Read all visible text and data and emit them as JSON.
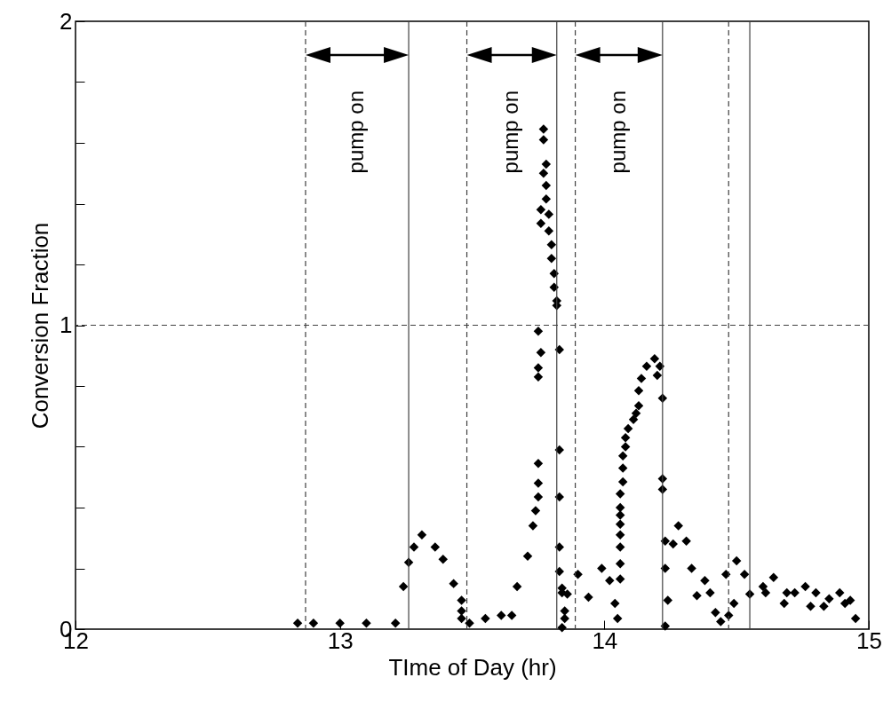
{
  "chart_data": {
    "type": "scatter",
    "xlabel": "TIme of Day (hr)",
    "ylabel": "Conversion Fraction",
    "xlim": [
      12,
      15
    ],
    "xticks": [
      12,
      13,
      14,
      15
    ],
    "ylim": [
      0,
      2
    ],
    "yticks": [
      0,
      {
        "value": 0.2,
        "label": null
      },
      {
        "value": 0.4,
        "label": null
      },
      {
        "value": 0.6,
        "label": null
      },
      {
        "value": 0.8,
        "label": null
      },
      1,
      {
        "value": 1.2,
        "label": null
      },
      {
        "value": 1.4,
        "label": null
      },
      {
        "value": 1.6,
        "label": null
      },
      {
        "value": 1.8,
        "label": null
      },
      2
    ],
    "grid": false,
    "marker": "diamond",
    "series": [
      {
        "color": "#000000",
        "x": [
          12.84,
          12.9,
          13.0,
          13.1,
          13.21,
          13.24,
          13.26,
          13.28,
          13.31,
          13.36,
          13.39,
          13.43,
          13.46,
          13.46,
          13.46,
          13.49,
          13.55,
          13.61,
          13.65,
          13.67,
          13.71,
          13.73,
          13.74,
          13.75,
          13.75,
          13.75,
          13.75,
          13.75,
          13.76,
          13.75,
          13.77,
          13.77,
          13.78,
          13.77,
          13.78,
          13.78,
          13.76,
          13.76,
          13.79,
          13.79,
          13.8,
          13.8,
          13.81,
          13.81,
          13.82,
          13.82,
          13.83,
          13.83,
          13.83,
          13.83,
          13.83,
          13.84,
          13.85,
          13.84,
          13.84,
          13.85,
          13.86,
          13.9,
          13.94,
          13.99,
          14.02,
          14.04,
          14.05,
          14.06,
          14.06,
          14.06,
          14.06,
          14.06,
          14.06,
          14.06,
          14.06,
          14.07,
          14.07,
          14.07,
          14.08,
          14.08,
          14.09,
          14.11,
          14.12,
          14.13,
          14.13,
          14.14,
          14.16,
          14.19,
          14.2,
          14.21,
          14.22,
          14.22,
          14.22,
          14.23,
          14.23,
          14.24,
          14.23,
          14.26,
          14.28,
          14.31,
          14.33,
          14.35,
          14.38,
          14.4,
          14.42,
          14.44,
          14.47,
          14.49,
          14.46,
          14.5,
          14.53,
          14.55,
          14.6,
          14.61,
          14.64,
          14.68,
          14.69,
          14.72,
          14.76,
          14.78,
          14.8,
          14.83,
          14.85,
          14.89,
          14.91,
          14.93,
          14.95
        ],
        "values": [
          0.02,
          0.02,
          0.02,
          0.02,
          0.02,
          0.14,
          0.22,
          0.27,
          0.31,
          0.27,
          0.23,
          0.15,
          0.095,
          0.06,
          0.035,
          0.02,
          0.035,
          0.045,
          0.045,
          0.14,
          0.24,
          0.34,
          0.39,
          0.435,
          0.48,
          0.545,
          0.83,
          0.86,
          0.91,
          0.98,
          1.645,
          1.61,
          1.53,
          1.5,
          1.46,
          1.415,
          1.38,
          1.335,
          1.365,
          1.31,
          1.265,
          1.22,
          1.17,
          1.125,
          1.08,
          1.065,
          0.92,
          0.59,
          0.435,
          0.27,
          0.19,
          0.12,
          0.06,
          0.005,
          0.135,
          0.035,
          0.115,
          0.18,
          0.105,
          0.2,
          0.16,
          0.085,
          0.035,
          0.165,
          0.215,
          0.27,
          0.31,
          0.345,
          0.375,
          0.4,
          0.445,
          0.485,
          0.53,
          0.57,
          0.6,
          0.63,
          0.66,
          0.69,
          0.71,
          0.735,
          0.785,
          0.825,
          0.865,
          0.89,
          0.835,
          0.865,
          0.76,
          0.495,
          0.46,
          0.29,
          0.2,
          0.095,
          0.01,
          0.28,
          0.34,
          0.29,
          0.2,
          0.11,
          0.16,
          0.12,
          0.055,
          0.025,
          0.045,
          0.085,
          0.18,
          0.225,
          0.18,
          0.115,
          0.14,
          0.12,
          0.17,
          0.085,
          0.12,
          0.12,
          0.14,
          0.075,
          0.12,
          0.075,
          0.1,
          0.12,
          0.085,
          0.095,
          0.035
        ]
      }
    ],
    "ref_lines": [
      {
        "axis": "y",
        "value": 1,
        "label": null,
        "color": "#404040",
        "line_style": "dashed"
      },
      {
        "axis": "x",
        "value": 12.87,
        "label": null,
        "color": "#404040",
        "line_style": "dashed"
      },
      {
        "axis": "x",
        "value": 13.26,
        "label": null,
        "color": "#404040",
        "line_style": "solid"
      },
      {
        "axis": "x",
        "value": 13.48,
        "label": null,
        "color": "#404040",
        "line_style": "dashed"
      },
      {
        "axis": "x",
        "value": 13.82,
        "label": null,
        "color": "#404040",
        "line_style": "solid"
      },
      {
        "axis": "x",
        "value": 13.89,
        "label": null,
        "color": "#404040",
        "line_style": "dashed"
      },
      {
        "axis": "x",
        "value": 14.22,
        "label": null,
        "color": "#404040",
        "line_style": "solid"
      },
      {
        "axis": "x",
        "value": 14.47,
        "label": null,
        "color": "#404040",
        "line_style": "dashed"
      },
      {
        "axis": "x",
        "value": 14.55,
        "label": null,
        "color": "#404040",
        "line_style": "solid"
      }
    ],
    "annotations": [
      "pump on",
      "pump on",
      "pump on"
    ]
  }
}
